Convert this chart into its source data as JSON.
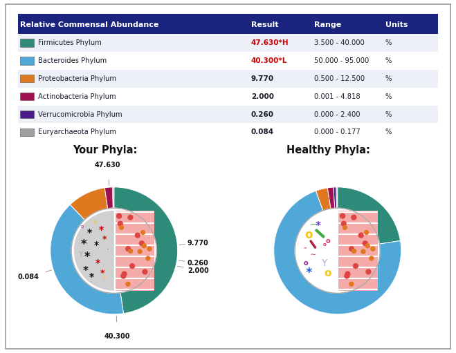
{
  "table_header": [
    "Relative Commensal Abundance",
    "Result",
    "Range",
    "Units"
  ],
  "rows": [
    {
      "name": "Firmicutes Phylum",
      "result": "47.630*H",
      "range": "3.500 - 40.000",
      "units": "%",
      "color": "#2e8b7a",
      "result_color": "#cc0000"
    },
    {
      "name": "Bacteroides Phylum",
      "result": "40.300*L",
      "range": "50.000 - 95.000",
      "units": "%",
      "color": "#4fa8d8",
      "result_color": "#cc0000"
    },
    {
      "name": "Proteobacteria Phylum",
      "result": "9.770",
      "range": "0.500 - 12.500",
      "units": "%",
      "color": "#e07820",
      "result_color": "#1a1a2e"
    },
    {
      "name": "Actinobacteria Phylum",
      "result": "2.000",
      "range": "0.001 - 4.818",
      "units": "%",
      "color": "#a01050",
      "result_color": "#1a1a2e"
    },
    {
      "name": "Verrucomicrobia Phylum",
      "result": "0.260",
      "range": "0.000 - 2.400",
      "units": "%",
      "color": "#4a1a8a",
      "result_color": "#1a1a2e"
    },
    {
      "name": "Euryarchaeota Phylum",
      "result": "0.084",
      "range": "0.000 - 0.177",
      "units": "%",
      "color": "#a0a0a0",
      "result_color": "#1a1a2e"
    }
  ],
  "header_bg": "#1a237e",
  "header_fg": "#ffffff",
  "your_values": [
    47.63,
    40.3,
    9.77,
    2.0,
    0.26,
    0.084
  ],
  "healthy_values": [
    22.5,
    72.0,
    3.0,
    1.5,
    0.7,
    0.3
  ],
  "pie_colors": [
    "#2e8b7a",
    "#4fa8d8",
    "#e07820",
    "#a01050",
    "#4a1a8a",
    "#a0a0a0"
  ],
  "your_title": "Your Phyla:",
  "healthy_title": "Healthy Phyla:",
  "bg_color": "#ffffff",
  "border_color": "#999999",
  "your_label_positions": {
    "47.630": [
      0.0,
      1.3
    ],
    "40.300": [
      0.0,
      -1.32
    ],
    "9.770": [
      1.28,
      0.1
    ],
    "2.000": [
      1.28,
      -0.28
    ],
    "0.260": [
      1.28,
      -0.17
    ],
    "0.084": [
      -1.32,
      -0.35
    ]
  }
}
